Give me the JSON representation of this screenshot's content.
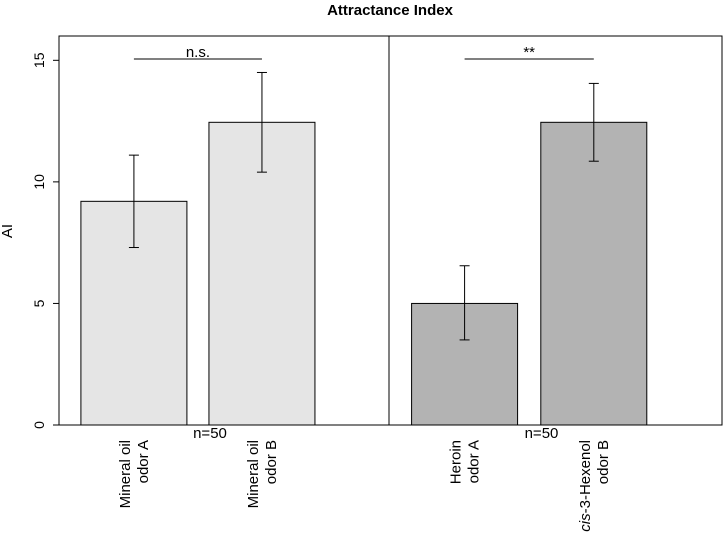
{
  "chart_data": {
    "type": "bar",
    "title": "Attractance Index",
    "ylabel": "AI",
    "ylim": [
      0,
      16
    ],
    "yticks": [
      0,
      5,
      10,
      15
    ],
    "panels": [
      {
        "bars": [
          {
            "label_line1": "Mineral oil",
            "label_line1_italic": "",
            "label_line1_rest": "",
            "label_line2": "odor A",
            "value": 9.2,
            "err_low": 7.3,
            "err_high": 11.1,
            "color": "#e5e5e5"
          },
          {
            "label_line1": "Mineral oil",
            "label_line1_italic": "",
            "label_line1_rest": "",
            "label_line2": "odor B",
            "value": 12.45,
            "err_low": 10.4,
            "err_high": 14.5,
            "color": "#e5e5e5"
          }
        ],
        "significance": "n.s.",
        "n_label": "n=50"
      },
      {
        "bars": [
          {
            "label_line1": "Heroin",
            "label_line1_italic": "",
            "label_line1_rest": "",
            "label_line2": "odor A",
            "value": 5.0,
            "err_low": 3.5,
            "err_high": 6.55,
            "color": "#b3b3b3"
          },
          {
            "label_line1": "",
            "label_line1_italic": "cis",
            "label_line1_rest": "-3-Hexenol",
            "label_line2": "odor B",
            "value": 12.45,
            "err_low": 10.85,
            "err_high": 14.05,
            "color": "#b3b3b3"
          }
        ],
        "significance": "**",
        "n_label": "n=50"
      }
    ]
  }
}
